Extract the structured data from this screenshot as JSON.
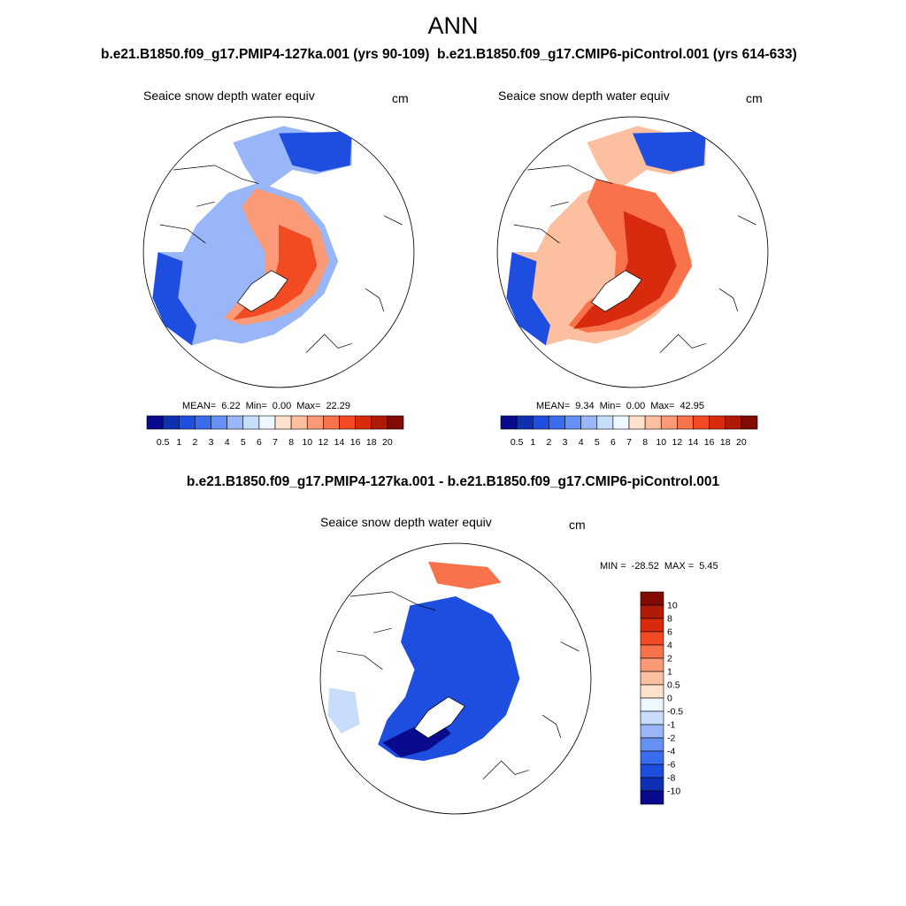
{
  "figure": {
    "title": "ANN"
  },
  "panels": [
    {
      "case_title": "b.e21.B1850.f09_g17.PMIP4-127ka.001 (yrs 90-109)",
      "variable": "Seaice snow depth water equiv",
      "units": "cm",
      "stats": {
        "mean_label": "MEAN=",
        "mean": "6.22",
        "min_label": "Min=",
        "min": "0.00",
        "max_label": "Max=",
        "max": "22.29"
      },
      "colorbar": {
        "labels": [
          "0.5",
          "1",
          "2",
          "3",
          "4",
          "5",
          "6",
          "7",
          "8",
          "10",
          "12",
          "14",
          "16",
          "18",
          "20"
        ],
        "colors": [
          "#0a0a8c",
          "#1030b4",
          "#1e4ee0",
          "#3a6cf0",
          "#6690f4",
          "#98b6f8",
          "#c8dcfc",
          "#eef6ff",
          "#ffe2cc",
          "#fcc0a0",
          "#fa9a76",
          "#f8724c",
          "#f24a22",
          "#d82a0c",
          "#b01a08",
          "#820c04"
        ]
      }
    },
    {
      "case_title": "b.e21.B1850.f09_g17.CMIP6-piControl.001 (yrs 614-633)",
      "variable": "Seaice snow depth water equiv",
      "units": "cm",
      "stats": {
        "mean_label": "MEAN=",
        "mean": "9.34",
        "min_label": "Min=",
        "min": "0.00",
        "max_label": "Max=",
        "max": "42.95"
      },
      "colorbar": {
        "labels": [
          "0.5",
          "1",
          "2",
          "3",
          "4",
          "5",
          "6",
          "7",
          "8",
          "10",
          "12",
          "14",
          "16",
          "18",
          "20"
        ],
        "colors": [
          "#0a0a8c",
          "#1030b4",
          "#1e4ee0",
          "#3a6cf0",
          "#6690f4",
          "#98b6f8",
          "#c8dcfc",
          "#eef6ff",
          "#ffe2cc",
          "#fcc0a0",
          "#fa9a76",
          "#f8724c",
          "#f24a22",
          "#d82a0c",
          "#b01a08",
          "#820c04"
        ]
      }
    },
    {
      "case_title": "b.e21.B1850.f09_g17.PMIP4-127ka.001 - b.e21.B1850.f09_g17.CMIP6-piControl.001",
      "variable": "Seaice snow depth water equiv",
      "units": "cm",
      "stats": {
        "min_label": "MIN =",
        "min": "-28.52",
        "max_label": "MAX =",
        "max": "5.45"
      },
      "colorbar": {
        "labels": [
          "10",
          "8",
          "6",
          "4",
          "2",
          "1",
          "0.5",
          "0",
          "-0.5",
          "-1",
          "-2",
          "-4",
          "-6",
          "-8",
          "-10"
        ],
        "colors": [
          "#820c04",
          "#b01a08",
          "#d82a0c",
          "#f24a22",
          "#f8724c",
          "#fa9a76",
          "#fcc0a0",
          "#ffe2cc",
          "#eef6ff",
          "#c8dcfc",
          "#98b6f8",
          "#6690f4",
          "#3a6cf0",
          "#1e4ee0",
          "#1030b4",
          "#0a0a8c"
        ]
      }
    }
  ]
}
